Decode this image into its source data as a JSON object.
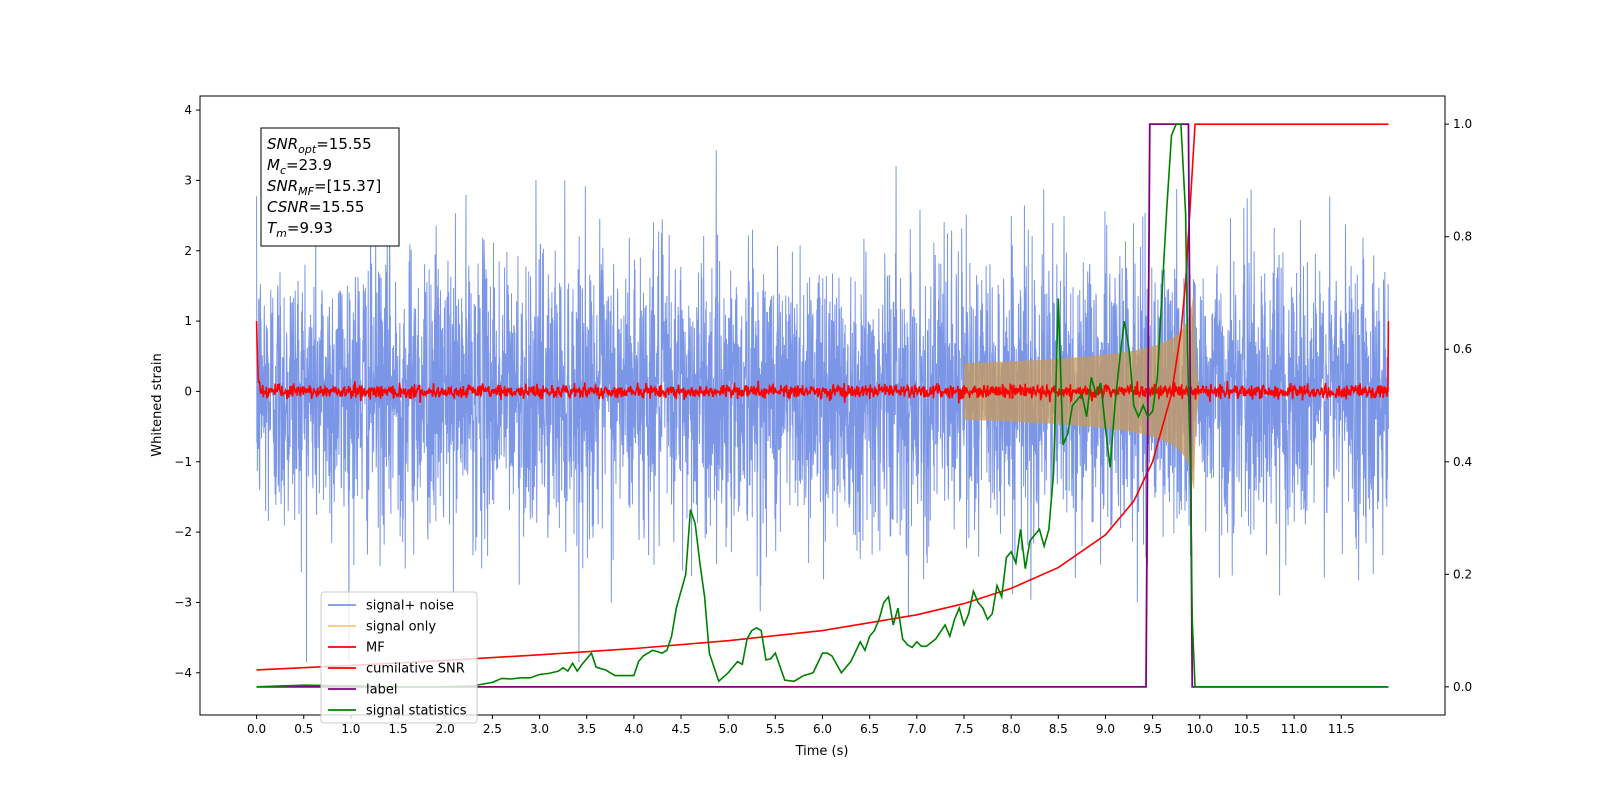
{
  "chart_data": {
    "type": "line",
    "xlabel": "Time (s)",
    "ylabel": "Whitened strain",
    "xlim": [
      -0.6,
      12.6
    ],
    "ylim": [
      -4.6,
      4.2
    ],
    "y2lim": [
      -0.05,
      1.05
    ],
    "xticks": [
      "0.0",
      "0.5",
      "1.0",
      "1.5",
      "2.0",
      "2.5",
      "3.0",
      "3.5",
      "4.0",
      "4.5",
      "5.0",
      "5.5",
      "6.0",
      "6.5",
      "7.0",
      "7.5",
      "8.0",
      "8.5",
      "9.0",
      "9.5",
      "10.0",
      "10.5",
      "11.0",
      "11.5"
    ],
    "yticks": [
      "4",
      "3",
      "2",
      "1",
      "0",
      "−1",
      "−2",
      "−3",
      "−4"
    ],
    "y2ticks": [
      "1.0",
      "0.8",
      "0.6",
      "0.4",
      "0.2",
      "0.0"
    ],
    "grid": false,
    "legend_position": "lower-left",
    "annotation_lines": [
      {
        "base": "SNR",
        "sub": "opt",
        "value": "=15.55"
      },
      {
        "base": "M",
        "sub": "c",
        "value": "=23.9"
      },
      {
        "base": "SNR",
        "sub": "MF",
        "value": "=[15.37]"
      },
      {
        "base": "CSNR",
        "sub": "",
        "value": "=15.55"
      },
      {
        "base": "T",
        "sub": "m",
        "value": "=9.93"
      }
    ],
    "series": [
      {
        "name": "signal+ noise",
        "color": "#7b96e6",
        "axis": "left",
        "kind": "noise",
        "time_span": [
          0,
          12
        ],
        "amplitude_sigma": 1.0,
        "amplitude_max": 3.85
      },
      {
        "name": "signal only",
        "color": "#f7c580",
        "axis": "left",
        "kind": "chirp",
        "merger_time": 9.93,
        "peak_amplitude": 2.3
      },
      {
        "name": "MF",
        "color": "#ff0000",
        "axis": "left",
        "kind": "matched-filter",
        "baseline": 0.0,
        "edge_value": 1.0
      },
      {
        "name": "cumilative SNR",
        "color": "#ff0000",
        "axis": "right",
        "x": [
          0,
          1,
          2,
          3,
          4,
          5,
          6,
          7,
          7.5,
          8,
          8.5,
          9,
          9.3,
          9.5,
          9.7,
          9.8,
          9.85,
          9.9,
          9.95,
          10,
          12
        ],
        "values": [
          0.03,
          0.038,
          0.047,
          0.057,
          0.068,
          0.082,
          0.1,
          0.128,
          0.148,
          0.175,
          0.212,
          0.27,
          0.33,
          0.4,
          0.52,
          0.63,
          0.72,
          0.86,
          1.0,
          1.0,
          1.0
        ]
      },
      {
        "name": "label",
        "color": "#7f007f",
        "axis": "right",
        "x": [
          0,
          9.43,
          9.47,
          9.88,
          9.92,
          12
        ],
        "values": [
          0,
          0,
          1,
          1,
          0,
          0
        ]
      },
      {
        "name": "signal statistics",
        "color": "#008000",
        "axis": "right",
        "x": [
          0,
          0.3,
          0.5,
          1,
          1.5,
          2,
          2.3,
          2.5,
          2.6,
          2.7,
          2.8,
          2.9,
          3,
          3.1,
          3.2,
          3.25,
          3.3,
          3.35,
          3.4,
          3.45,
          3.5,
          3.55,
          3.6,
          3.7,
          3.8,
          4,
          4.05,
          4.1,
          4.2,
          4.3,
          4.35,
          4.4,
          4.45,
          4.5,
          4.55,
          4.6,
          4.65,
          4.7,
          4.75,
          4.8,
          4.9,
          5,
          5.1,
          5.15,
          5.2,
          5.25,
          5.3,
          5.35,
          5.4,
          5.45,
          5.5,
          5.6,
          5.7,
          5.8,
          5.9,
          6,
          6.05,
          6.1,
          6.2,
          6.3,
          6.4,
          6.45,
          6.5,
          6.55,
          6.6,
          6.65,
          6.7,
          6.75,
          6.8,
          6.85,
          6.9,
          6.95,
          7,
          7.05,
          7.1,
          7.2,
          7.3,
          7.35,
          7.4,
          7.45,
          7.5,
          7.55,
          7.6,
          7.65,
          7.7,
          7.75,
          7.8,
          7.85,
          7.9,
          7.95,
          8,
          8.05,
          8.1,
          8.15,
          8.2,
          8.25,
          8.3,
          8.35,
          8.4,
          8.45,
          8.5,
          8.55,
          8.6,
          8.65,
          8.7,
          8.75,
          8.8,
          8.85,
          8.9,
          8.95,
          9,
          9.05,
          9.1,
          9.15,
          9.2,
          9.25,
          9.3,
          9.35,
          9.4,
          9.45,
          9.5,
          9.55,
          9.6,
          9.65,
          9.7,
          9.75,
          9.8,
          9.85,
          9.87,
          9.9,
          9.92,
          9.95,
          10,
          12
        ],
        "values": [
          0,
          0.002,
          0.003,
          0.002,
          0,
          0,
          0.002,
          0.008,
          0.015,
          0.014,
          0.016,
          0.016,
          0.022,
          0.024,
          0.028,
          0.034,
          0.028,
          0.042,
          0.028,
          0.04,
          0.05,
          0.06,
          0.035,
          0.03,
          0.02,
          0.02,
          0.045,
          0.055,
          0.065,
          0.06,
          0.065,
          0.09,
          0.14,
          0.17,
          0.2,
          0.315,
          0.29,
          0.22,
          0.16,
          0.06,
          0.01,
          0.025,
          0.045,
          0.04,
          0.085,
          0.1,
          0.105,
          0.1,
          0.048,
          0.05,
          0.06,
          0.012,
          0.01,
          0.02,
          0.025,
          0.06,
          0.06,
          0.055,
          0.025,
          0.045,
          0.08,
          0.065,
          0.09,
          0.1,
          0.12,
          0.15,
          0.16,
          0.11,
          0.14,
          0.085,
          0.075,
          0.07,
          0.08,
          0.072,
          0.072,
          0.085,
          0.11,
          0.09,
          0.12,
          0.14,
          0.11,
          0.13,
          0.17,
          0.15,
          0.14,
          0.12,
          0.13,
          0.18,
          0.16,
          0.23,
          0.24,
          0.22,
          0.28,
          0.21,
          0.26,
          0.27,
          0.28,
          0.25,
          0.28,
          0.38,
          0.69,
          0.43,
          0.45,
          0.5,
          0.51,
          0.52,
          0.48,
          0.55,
          0.52,
          0.54,
          0.46,
          0.39,
          0.5,
          0.58,
          0.65,
          0.6,
          0.5,
          0.48,
          0.5,
          0.48,
          0.49,
          0.55,
          0.7,
          0.85,
          0.98,
          1.0,
          1.0,
          0.84,
          0.6,
          0.4,
          0.12,
          0.0,
          0.0,
          0.0
        ]
      }
    ]
  }
}
